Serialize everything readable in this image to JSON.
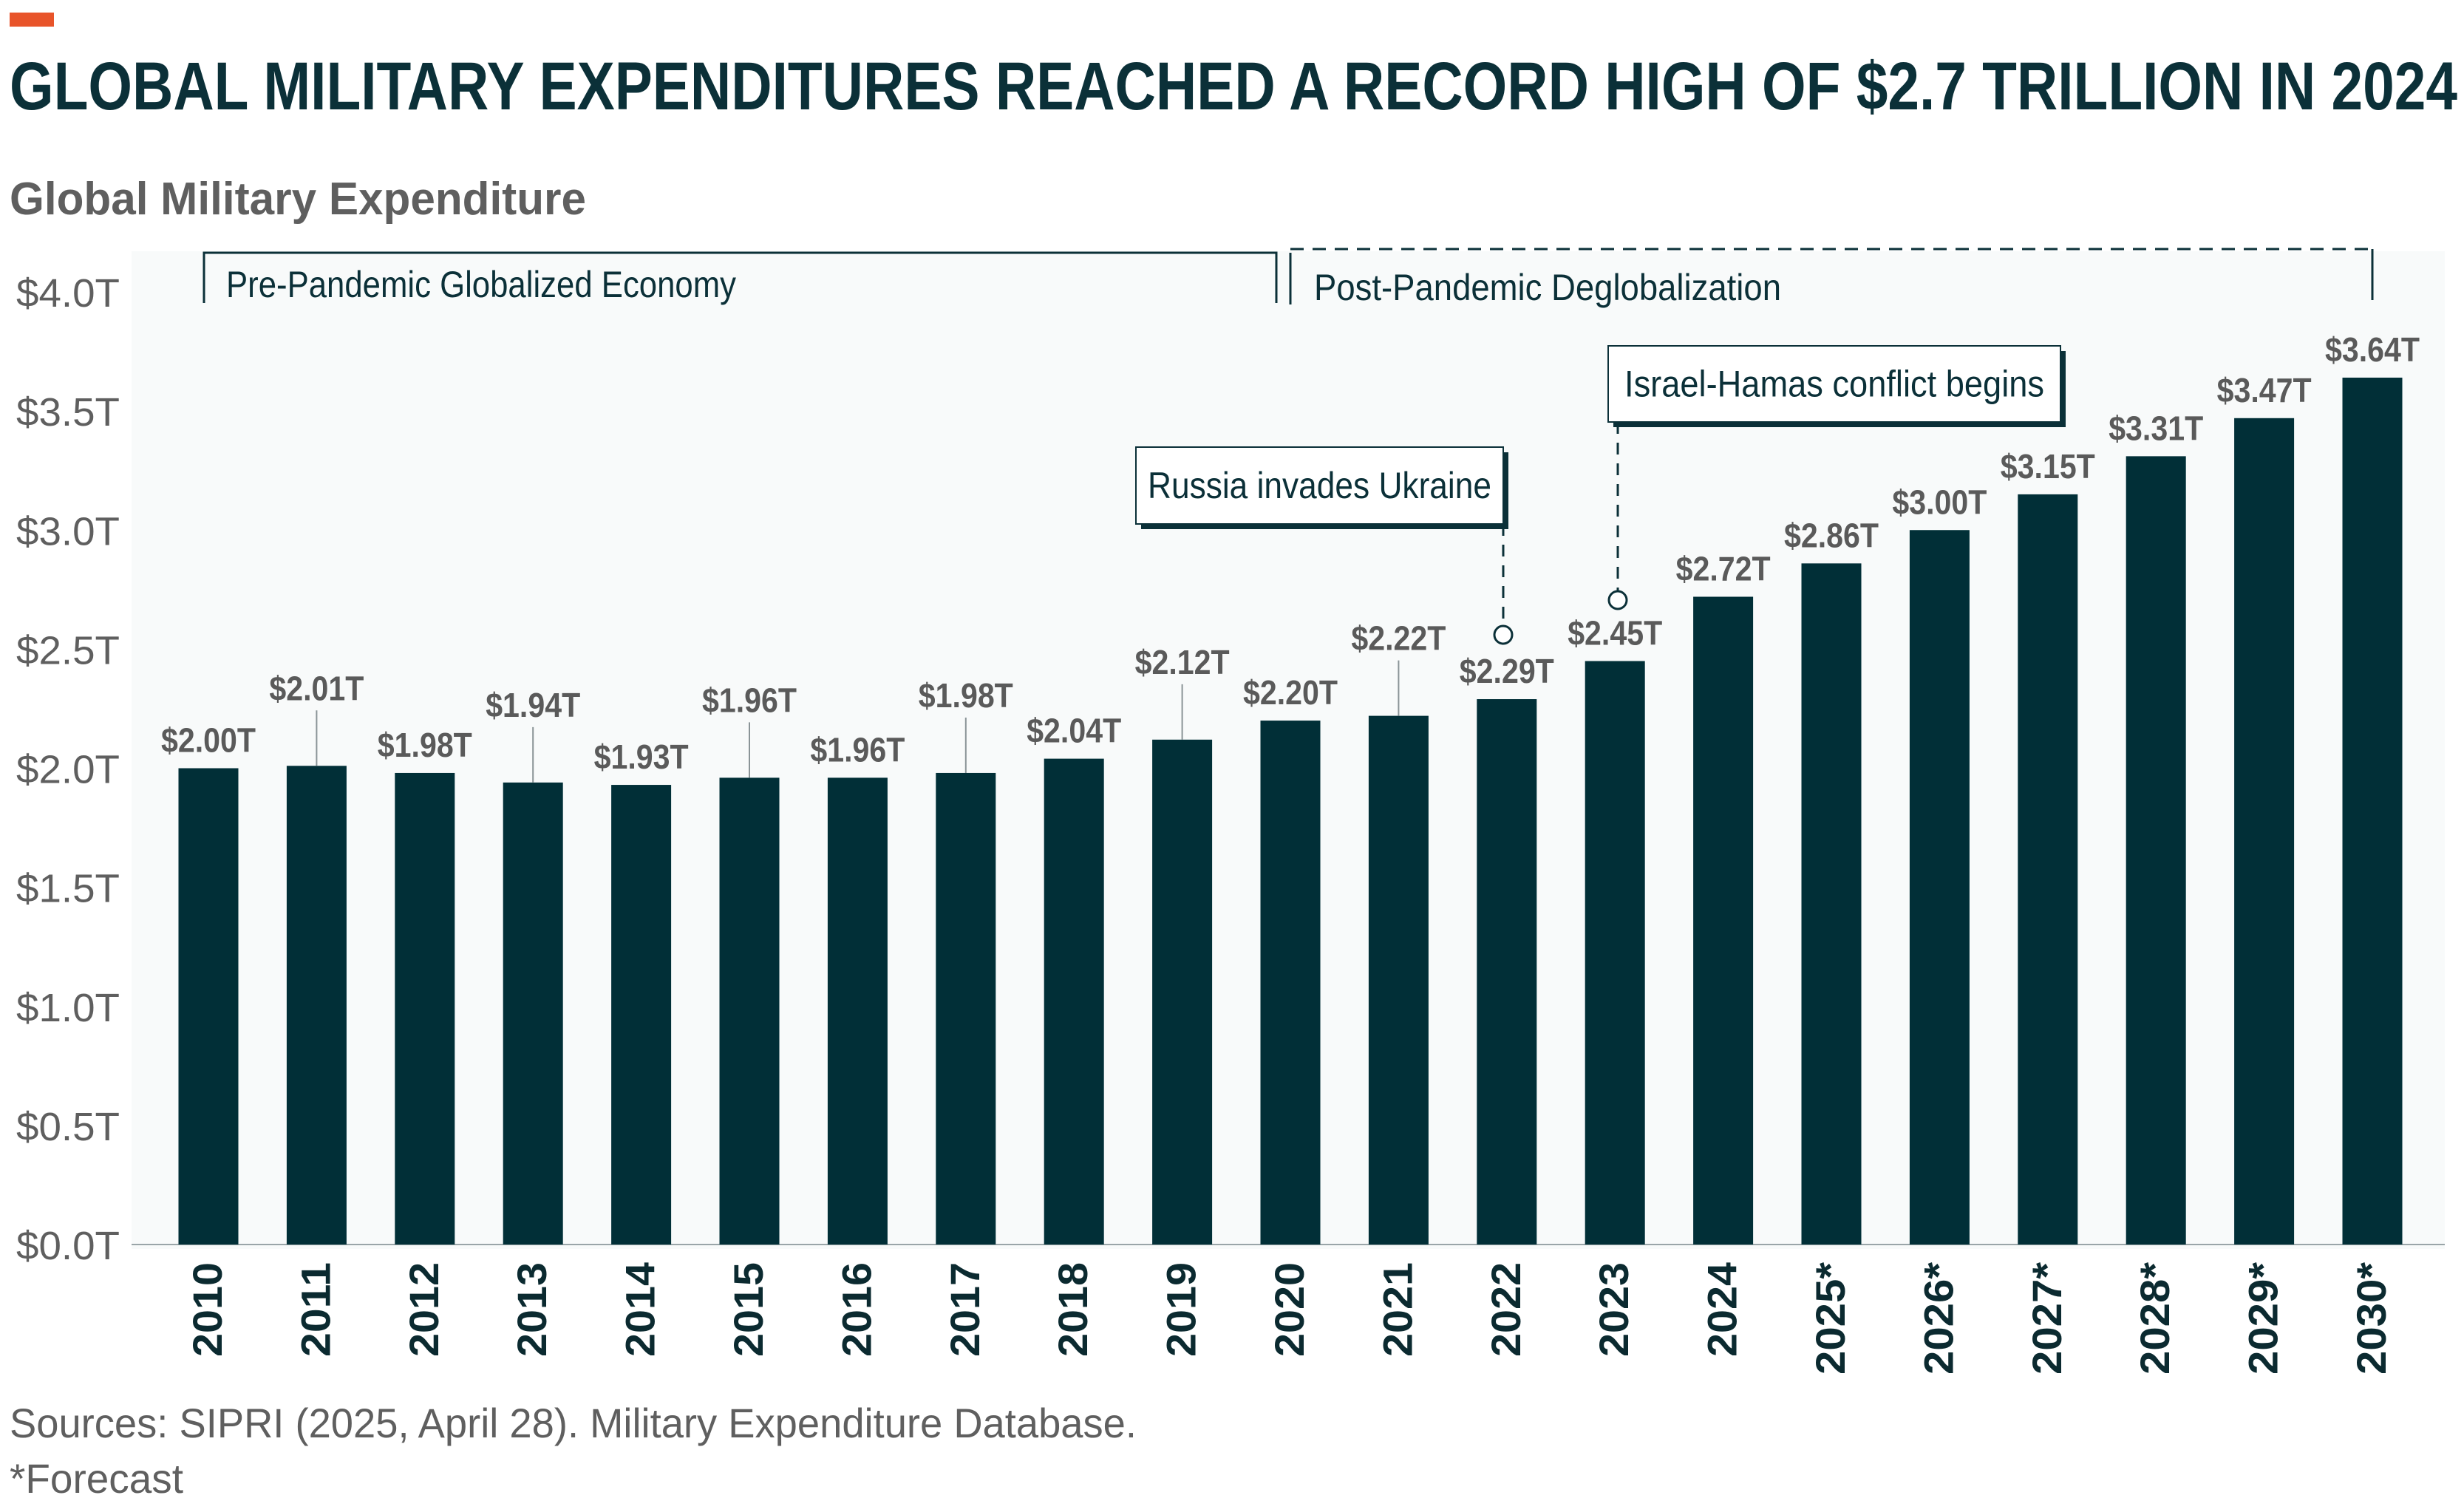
{
  "header": {
    "title": "GLOBAL MILITARY EXPENDITURES REACHED A RECORD HIGH OF $2.7 TRILLION IN 2024",
    "subtitle": "Global Military Expenditure",
    "accent_color": "#e8542a"
  },
  "chart_data": {
    "type": "bar",
    "title": "GLOBAL MILITARY EXPENDITURES REACHED A RECORD HIGH OF $2.7 TRILLION IN 2024",
    "subtitle": "Global Military Expenditure",
    "xlabel": "",
    "ylabel": "",
    "unit": "trillion USD",
    "ylim": [
      0,
      4.0
    ],
    "grid": false,
    "bar_color": "#012f37",
    "y_ticks": [
      "$0.0T",
      "$0.5T",
      "$1.0T",
      "$1.5T",
      "$2.0T",
      "$2.5T",
      "$3.0T",
      "$3.5T",
      "$4.0T"
    ],
    "y_tick_values": [
      0,
      0.5,
      1.0,
      1.5,
      2.0,
      2.5,
      3.0,
      3.5,
      4.0
    ],
    "categories": [
      "2010",
      "2011",
      "2012",
      "2013",
      "2014",
      "2015",
      "2016",
      "2017",
      "2018",
      "2019",
      "2020",
      "2021",
      "2022",
      "2023",
      "2024",
      "2025*",
      "2026*",
      "2027*",
      "2028*",
      "2029*",
      "2030*"
    ],
    "values": [
      2.0,
      2.01,
      1.98,
      1.94,
      1.93,
      1.96,
      1.96,
      1.98,
      2.04,
      2.12,
      2.2,
      2.22,
      2.29,
      2.45,
      2.72,
      2.86,
      3.0,
      3.15,
      3.31,
      3.47,
      3.64
    ],
    "data_labels": [
      "$2.00T",
      "$2.01T",
      "$1.98T",
      "$1.94T",
      "$1.93T",
      "$1.96T",
      "$1.96T",
      "$1.98T",
      "$2.04T",
      "$2.12T",
      "$2.20T",
      "$2.22T",
      "$2.29T",
      "$2.45T",
      "$2.72T",
      "$2.86T",
      "$3.00T",
      "$3.15T",
      "$3.31T",
      "$3.47T",
      "$3.64T"
    ],
    "periods": [
      {
        "label": "Pre-Pandemic Globalized Economy",
        "from": "2010",
        "to": "2020"
      },
      {
        "label": "Post-Pandemic Deglobalization",
        "from": "2020",
        "to": "2030*"
      }
    ],
    "annotations": [
      {
        "label": "Russia invades Ukraine",
        "category": "2022"
      },
      {
        "label": "Israel-Hamas conflict begins",
        "category": "2023"
      }
    ]
  },
  "footer": {
    "sources": "Sources: SIPRI (2025, April 28). Military Expenditure Database.",
    "note": "*Forecast"
  }
}
